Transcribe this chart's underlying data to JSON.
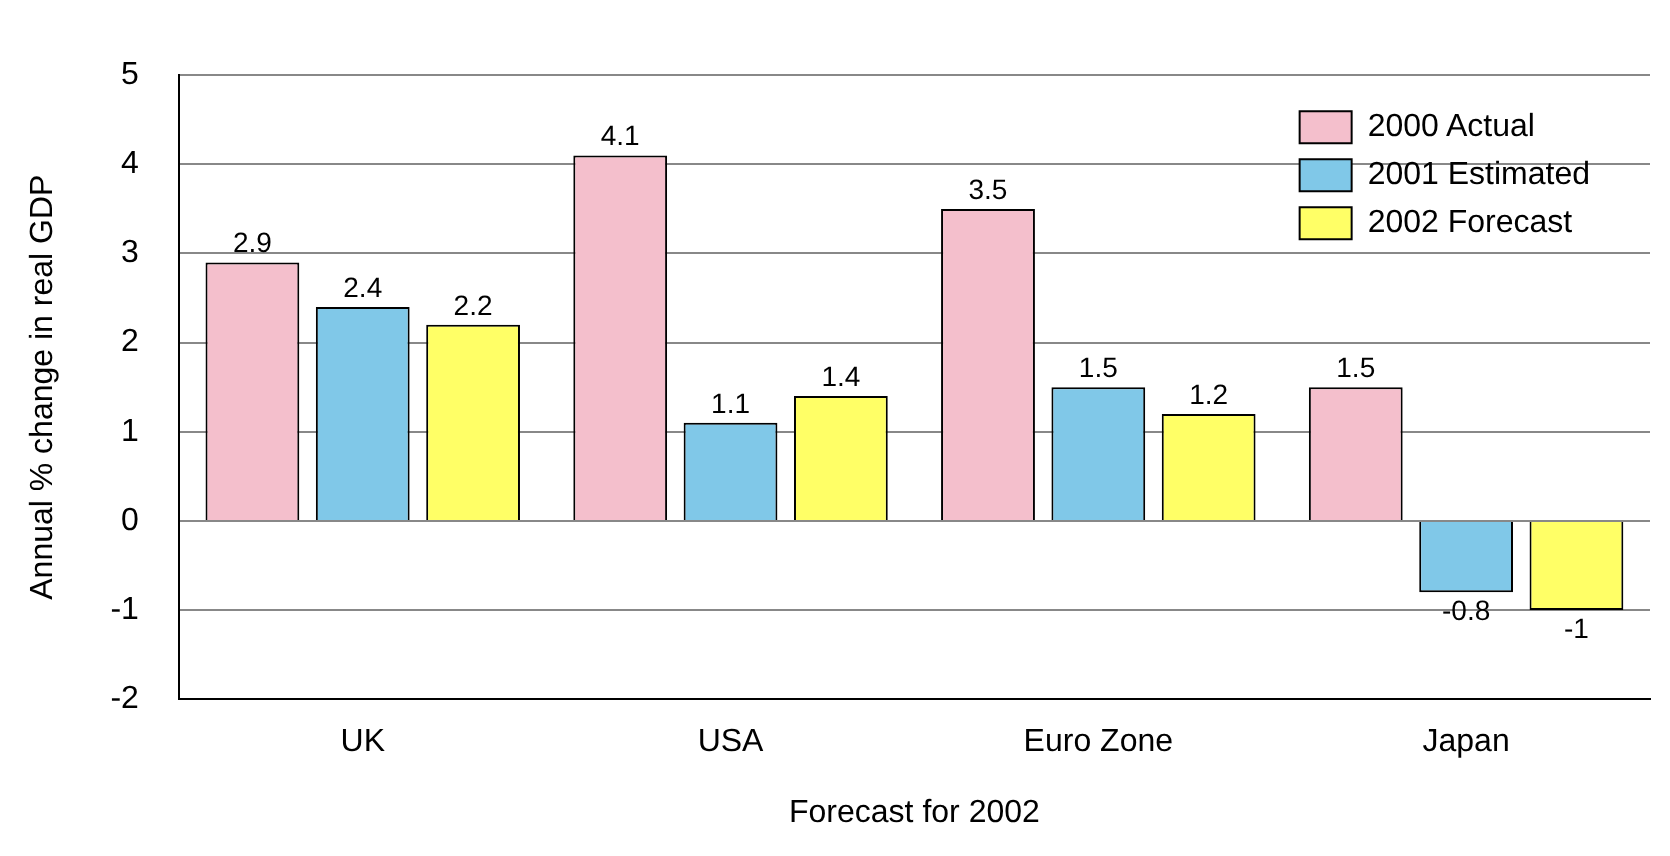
{
  "chart_data": {
    "type": "bar",
    "xlabel": "Forecast for 2002",
    "ylabel": "Annual % change in real GDP",
    "categories": [
      "UK",
      "USA",
      "Euro Zone",
      "Japan"
    ],
    "series": [
      {
        "name": "2000 Actual",
        "color": "#f4bfcc",
        "values": [
          2.9,
          4.1,
          3.5,
          1.5
        ]
      },
      {
        "name": "2001 Estimated",
        "color": "#80c8e8",
        "values": [
          2.4,
          1.1,
          1.5,
          -0.8
        ]
      },
      {
        "name": "2002 Forecast",
        "color": "#ffff66",
        "values": [
          2.2,
          1.4,
          1.2,
          -1
        ]
      }
    ],
    "ylim": [
      -2,
      5
    ],
    "yticks": [
      -2,
      -1,
      0,
      1,
      2,
      3,
      4,
      5
    ],
    "grid": "y",
    "legend": "top right",
    "data_labels": true
  }
}
